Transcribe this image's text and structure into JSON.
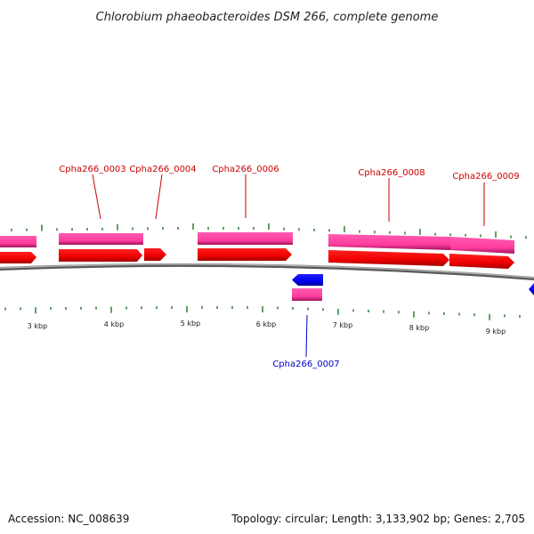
{
  "title": "Chlorobium phaeobacteroides DSM 266, complete genome",
  "footer": {
    "accession": "Accession: NC_008639",
    "topology": "Topology: circular; Length: 3,133,902 bp; Genes: 2,705"
  },
  "colors": {
    "forward": "#ff0000",
    "reverse": "#0000ff",
    "cds_band": "#ff3c9e",
    "tick_minor": "#2f7f2f",
    "backbone": "#888888"
  },
  "scale": {
    "labels": [
      "3 kbp",
      "4 kbp",
      "5 kbp",
      "6 kbp",
      "7 kbp",
      "8 kbp",
      "9 kbp"
    ]
  },
  "genes": [
    {
      "locus": "Cpha266_0003",
      "strand": "forward"
    },
    {
      "locus": "Cpha266_0004",
      "strand": "forward"
    },
    {
      "locus": "Cpha266_0006",
      "strand": "forward"
    },
    {
      "locus": "Cpha266_0007",
      "strand": "reverse"
    },
    {
      "locus": "Cpha266_0008",
      "strand": "forward"
    },
    {
      "locus": "Cpha266_0009",
      "strand": "forward"
    }
  ]
}
